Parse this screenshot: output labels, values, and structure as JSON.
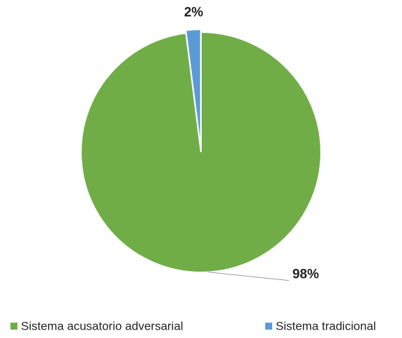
{
  "chart_data": {
    "type": "pie",
    "categories": [
      "Sistema acusatorio adversarial",
      "Sistema tradicional"
    ],
    "values": [
      98,
      2
    ],
    "value_labels": [
      "98%",
      "2%"
    ],
    "colors": [
      "#70ad47",
      "#5b9bd5"
    ],
    "legend": "bottom"
  }
}
